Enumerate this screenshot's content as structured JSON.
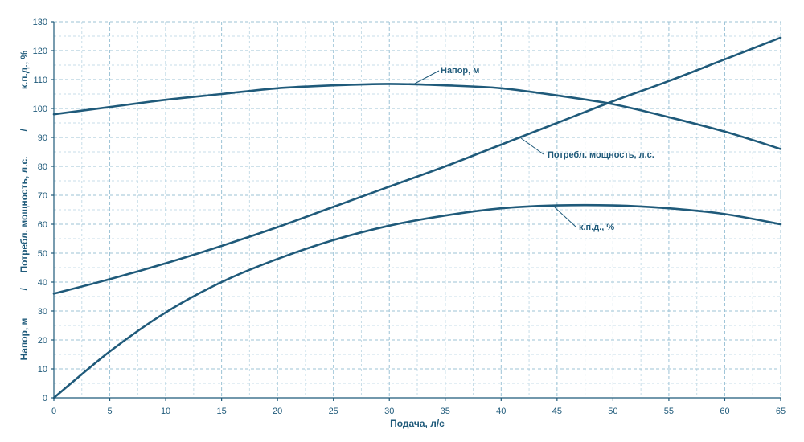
{
  "chart_data": {
    "type": "line",
    "xlabel": "Подача, л/с",
    "ylabel_parts": [
      "Напор, м",
      "/",
      "Потребл. мощность, л.с.",
      "/",
      "к.п.д., %"
    ],
    "xlim": [
      0,
      65
    ],
    "ylim": [
      0,
      130
    ],
    "xticks": [
      0,
      5,
      10,
      15,
      20,
      25,
      30,
      35,
      40,
      45,
      50,
      55,
      60,
      65
    ],
    "yticks": [
      0,
      10,
      20,
      30,
      40,
      50,
      60,
      70,
      80,
      90,
      100,
      110,
      120,
      130
    ],
    "grid": true,
    "color": "#1f5a7a",
    "series": [
      {
        "name": "Напор, м",
        "x": [
          0,
          5,
          10,
          15,
          20,
          25,
          30,
          35,
          40,
          45,
          50,
          55,
          60,
          65
        ],
        "y": [
          98,
          100.5,
          103,
          105,
          107,
          108,
          108.5,
          108,
          107,
          104.5,
          101.5,
          97,
          92,
          86
        ]
      },
      {
        "name": "Потребл.  мощность, л.с.",
        "x": [
          0,
          5,
          10,
          15,
          20,
          25,
          30,
          35,
          40,
          45,
          50,
          55,
          60,
          65
        ],
        "y": [
          36,
          41,
          46.5,
          52.5,
          59,
          66,
          73,
          80,
          87.5,
          95,
          102.5,
          109.5,
          117,
          124.5
        ]
      },
      {
        "name": "к.п.д., %",
        "x": [
          0,
          5,
          10,
          15,
          20,
          25,
          30,
          35,
          40,
          45,
          50,
          55,
          60,
          65
        ],
        "y": [
          0,
          16,
          29.5,
          40,
          48,
          54.5,
          59.5,
          63,
          65.5,
          66.5,
          66.5,
          65.5,
          63.5,
          60
        ]
      }
    ]
  }
}
